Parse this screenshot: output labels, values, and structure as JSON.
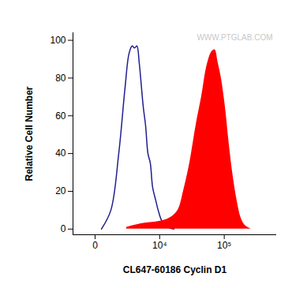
{
  "chart_data": {
    "type": "histogram",
    "xlabel": "CL647-60186 Cyclin D1",
    "ylabel": "Relative Cell Number",
    "annotation": "WWW.PTGLAB.COM",
    "log": "x",
    "xlim": [
      -1400,
      600000
    ],
    "xticks": [
      0,
      {
        "value": 10000,
        "label": "10⁴"
      },
      {
        "value": 100000,
        "label": "10⁵"
      }
    ],
    "ylim": [
      -3,
      104
    ],
    "yticks": [
      0,
      20,
      40,
      60,
      80,
      100
    ],
    "grid": false,
    "series": [
      {
        "type": "line",
        "color": "#1f1f8f",
        "x": [
          300,
          889,
          1545,
          2216,
          2714,
          3161,
          3532,
          3932,
          4363,
          5175,
          5710,
          6300,
          6925,
          7613,
          8617,
          9440,
          10980,
          13510,
          17040
        ],
        "values": [
          0,
          10,
          40,
          75,
          93,
          97,
          96,
          97,
          88,
          65,
          55,
          40,
          35,
          22,
          15,
          10,
          4,
          1,
          0
        ]
      },
      {
        "type": "area",
        "color": "#ff0000",
        "x": [
          2406,
          5000,
          9440,
          14740,
          19660,
          23990,
          30040,
          37500,
          45500,
          55190,
          65060,
          72500,
          80880,
          90250,
          103400,
          118400,
          135500,
          155200,
          177500,
          203400,
          252200
        ],
        "values": [
          1,
          3,
          4,
          6,
          10,
          20,
          35,
          55,
          70,
          87,
          94,
          95,
          88,
          80,
          65,
          45,
          28,
          15,
          6,
          2,
          0
        ]
      }
    ]
  }
}
